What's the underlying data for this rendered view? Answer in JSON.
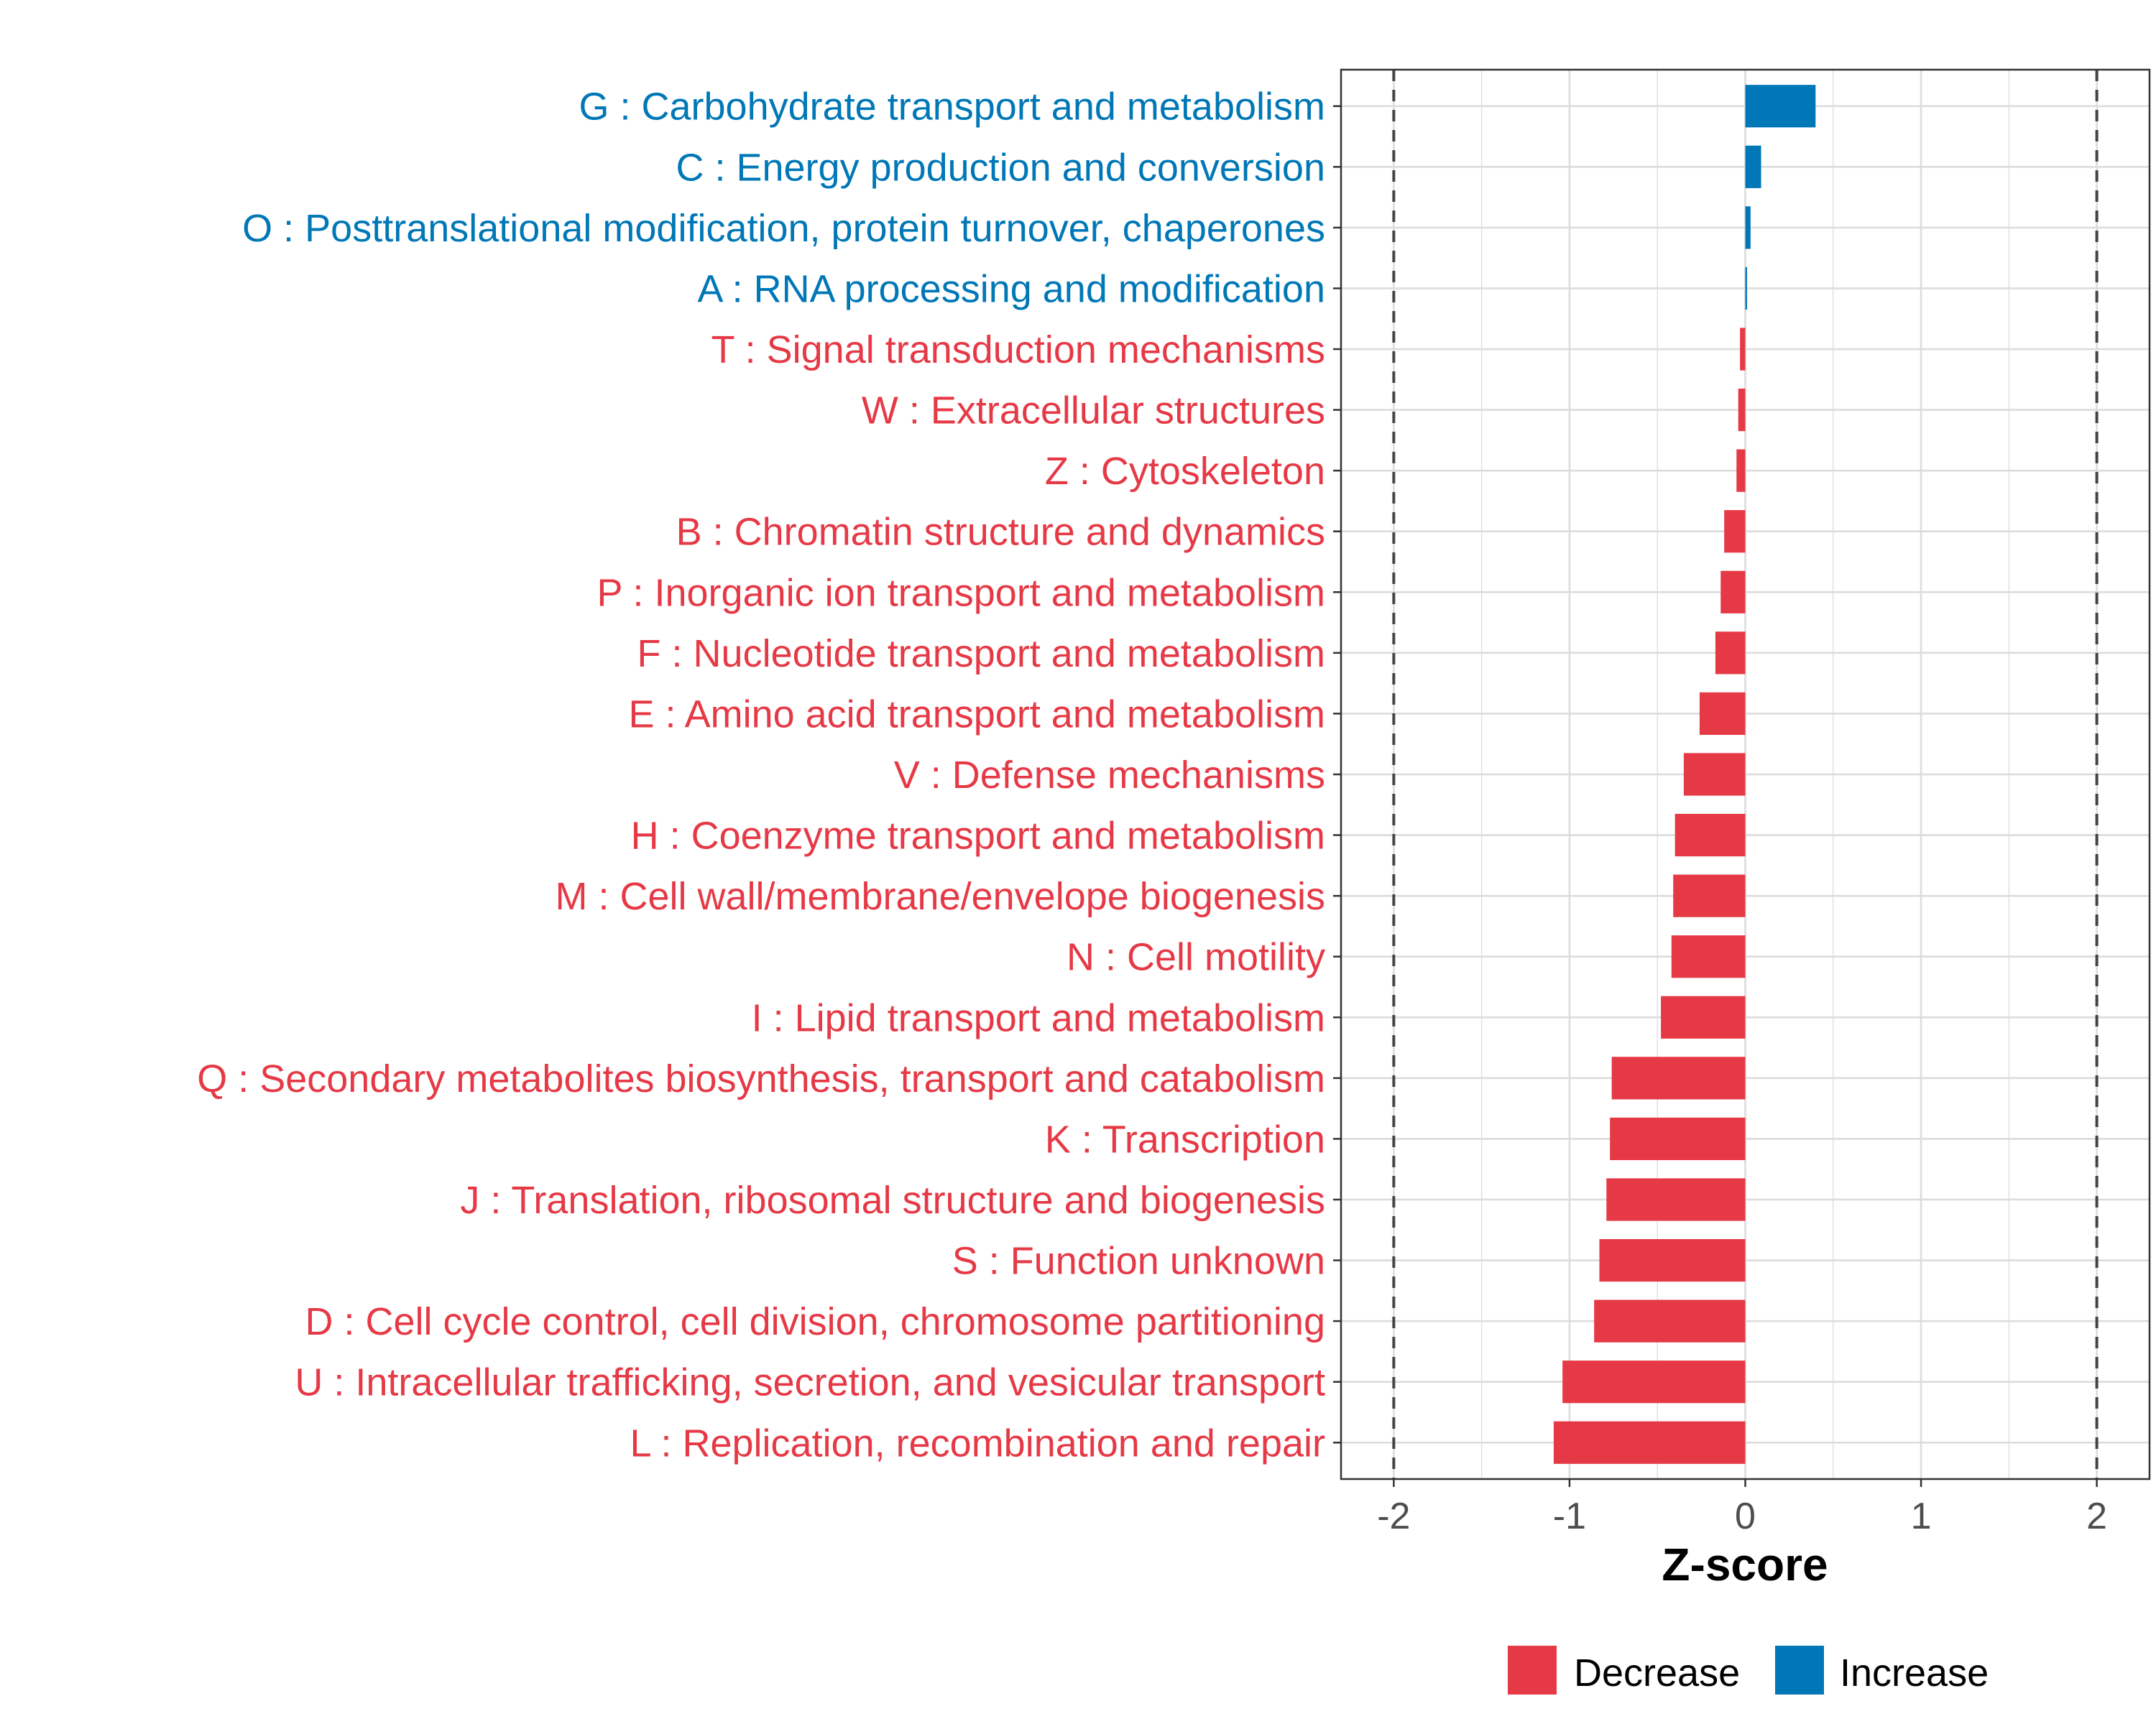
{
  "chart_data": {
    "type": "bar",
    "orientation": "horizontal",
    "title": "",
    "xlabel": "Z-score",
    "ylabel": "",
    "xlim": [
      -2.3,
      2.3
    ],
    "x_ticks": [
      -2,
      -1,
      0,
      1,
      2
    ],
    "x_tick_labels": [
      "-2",
      "-1",
      "0",
      "1",
      "2"
    ],
    "reference_lines": [
      -2,
      2
    ],
    "grid": true,
    "colors": {
      "Decrease": "#E63946",
      "Increase": "#0077B6"
    },
    "categories": [
      "G : Carbohydrate transport and metabolism",
      "C : Energy production and conversion",
      "O : Posttranslational modification, protein turnover, chaperones",
      "A : RNA processing and modification",
      "T : Signal transduction mechanisms",
      "W : Extracellular structures",
      "Z : Cytoskeleton",
      "B : Chromatin structure and dynamics",
      "P : Inorganic ion transport and metabolism",
      "F : Nucleotide transport and metabolism",
      "E : Amino acid transport and metabolism",
      "V : Defense mechanisms",
      "H : Coenzyme transport and metabolism",
      "M : Cell wall/membrane/envelope biogenesis",
      "N : Cell motility",
      "I : Lipid transport and metabolism",
      "Q : Secondary metabolites biosynthesis, transport and catabolism",
      "K : Transcription",
      "J : Translation, ribosomal structure and biogenesis",
      "S : Function unknown",
      "D : Cell cycle control, cell division, chromosome partitioning",
      "U : Intracellular trafficking, secretion, and vesicular transport",
      "L : Replication, recombination and repair"
    ],
    "values": [
      0.4,
      0.09,
      0.03,
      0.01,
      -0.03,
      -0.04,
      -0.05,
      -0.12,
      -0.14,
      -0.17,
      -0.26,
      -0.35,
      -0.4,
      -0.41,
      -0.42,
      -0.48,
      -0.76,
      -0.77,
      -0.79,
      -0.83,
      -0.86,
      -1.04,
      -1.09
    ],
    "groups": [
      "Increase",
      "Increase",
      "Increase",
      "Increase",
      "Decrease",
      "Decrease",
      "Decrease",
      "Decrease",
      "Decrease",
      "Decrease",
      "Decrease",
      "Decrease",
      "Decrease",
      "Decrease",
      "Decrease",
      "Decrease",
      "Decrease",
      "Decrease",
      "Decrease",
      "Decrease",
      "Decrease",
      "Decrease",
      "Decrease"
    ],
    "legend": {
      "position": "bottom",
      "entries": [
        "Decrease",
        "Increase"
      ]
    }
  }
}
